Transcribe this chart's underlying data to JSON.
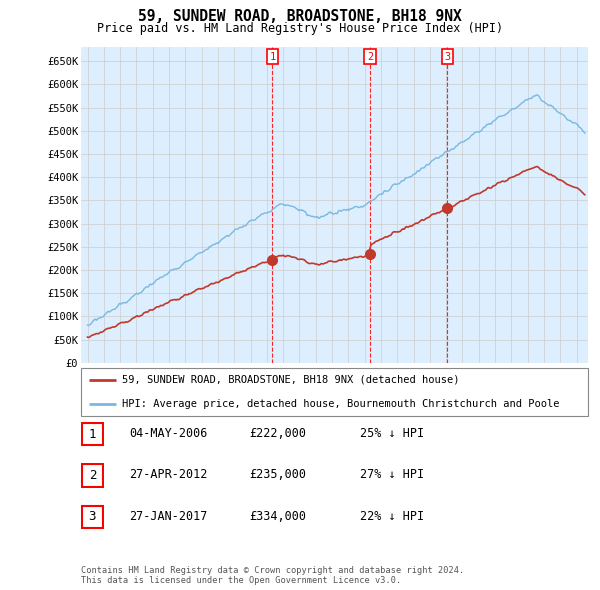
{
  "title": "59, SUNDEW ROAD, BROADSTONE, BH18 9NX",
  "subtitle": "Price paid vs. HM Land Registry's House Price Index (HPI)",
  "ylim": [
    0,
    680000
  ],
  "yticks": [
    0,
    50000,
    100000,
    150000,
    200000,
    250000,
    300000,
    350000,
    400000,
    450000,
    500000,
    550000,
    600000,
    650000
  ],
  "ytick_labels": [
    "£0",
    "£50K",
    "£100K",
    "£150K",
    "£200K",
    "£250K",
    "£300K",
    "£350K",
    "£400K",
    "£450K",
    "£500K",
    "£550K",
    "£600K",
    "£650K"
  ],
  "hpi_color": "#7bb8e0",
  "price_color": "#c0392b",
  "marker_color": "#c0392b",
  "grid_color": "#cccccc",
  "bg_color": "#ffffff",
  "chart_bg_color": "#ddeeff",
  "sale_prices": [
    222000,
    235000,
    334000
  ],
  "sale_date_floats": [
    2006.34,
    2012.32,
    2017.07
  ],
  "sale_labels": [
    "1",
    "2",
    "3"
  ],
  "legend_label_red": "59, SUNDEW ROAD, BROADSTONE, BH18 9NX (detached house)",
  "legend_label_blue": "HPI: Average price, detached house, Bournemouth Christchurch and Poole",
  "table_rows": [
    [
      "1",
      "04-MAY-2006",
      "£222,000",
      "25% ↓ HPI"
    ],
    [
      "2",
      "27-APR-2012",
      "£235,000",
      "27% ↓ HPI"
    ],
    [
      "3",
      "27-JAN-2017",
      "£334,000",
      "22% ↓ HPI"
    ]
  ],
  "footnote": "Contains HM Land Registry data © Crown copyright and database right 2024.\nThis data is licensed under the Open Government Licence v3.0.",
  "xstart": 1994.6,
  "xend": 2025.7
}
